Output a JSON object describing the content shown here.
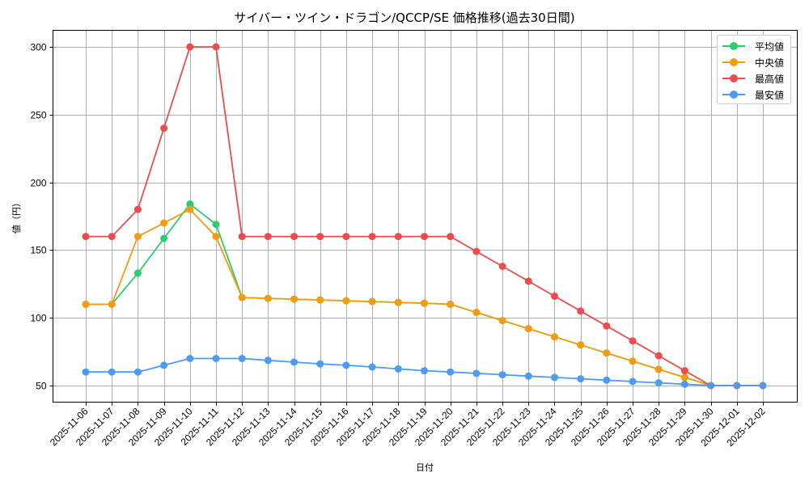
{
  "chart_data": {
    "type": "line",
    "title": "サイバー・ツイン・ドラゴン/QCCP/SE 価格推移(過去30日間)",
    "xlabel": "日付",
    "ylabel": "値（円）",
    "ylim": [
      38,
      313
    ],
    "yticks": [
      50,
      100,
      150,
      200,
      250,
      300
    ],
    "grid": true,
    "legend_position": "upper right",
    "x": [
      "2025-11-06",
      "2025-11-07",
      "2025-11-08",
      "2025-11-09",
      "2025-11-10",
      "2025-11-11",
      "2025-11-12",
      "2025-11-13",
      "2025-11-14",
      "2025-11-15",
      "2025-11-16",
      "2025-11-17",
      "2025-11-18",
      "2025-11-19",
      "2025-11-20",
      "2025-11-21",
      "2025-11-22",
      "2025-11-23",
      "2025-11-24",
      "2025-11-25",
      "2025-11-26",
      "2025-11-27",
      "2025-11-28",
      "2025-11-29",
      "2025-11-30",
      "2025-12-01",
      "2025-12-02"
    ],
    "series": [
      {
        "name": "平均値",
        "color": "#2ecc71",
        "values": [
          110,
          110,
          133,
          158.6,
          184,
          169,
          115,
          114.4,
          113.8,
          113.2,
          112.6,
          112,
          111.4,
          110.8,
          110,
          104,
          98,
          92,
          86,
          80,
          74,
          68,
          62,
          56,
          50,
          50,
          50
        ]
      },
      {
        "name": "中央値",
        "color": "#f39c12",
        "values": [
          110,
          110,
          160,
          170,
          180,
          160,
          115,
          114.4,
          113.8,
          113.2,
          112.6,
          112,
          111.4,
          110.8,
          110,
          104,
          98,
          92,
          86,
          80,
          74,
          68,
          62,
          56,
          50,
          50,
          50
        ]
      },
      {
        "name": "最高値",
        "color": "#ef4b4f",
        "values": [
          160,
          160,
          180,
          240,
          300,
          300,
          160,
          160,
          160,
          160,
          160,
          160,
          160,
          160,
          160,
          149,
          138,
          127,
          116,
          105,
          94,
          83,
          72,
          61,
          50,
          50,
          50
        ]
      },
      {
        "name": "最安値",
        "color": "#4c9bf5",
        "values": [
          60,
          60,
          60,
          65,
          70,
          70,
          70,
          68.6,
          67.3,
          66,
          65,
          63.7,
          62.3,
          61,
          60,
          59,
          58,
          57,
          56,
          55,
          54,
          53,
          52,
          51,
          50,
          50,
          50
        ]
      }
    ]
  }
}
